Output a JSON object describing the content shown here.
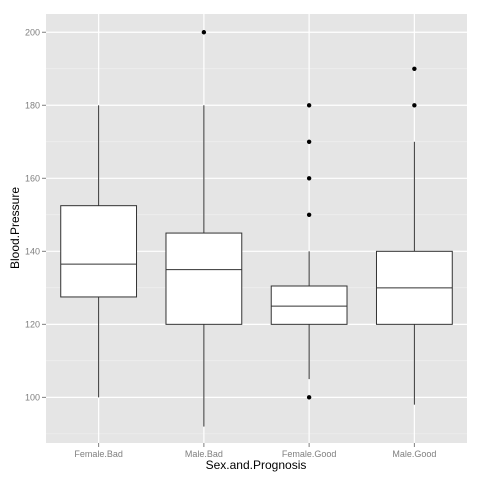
{
  "chart_data": {
    "type": "boxplot",
    "title": "",
    "xlabel": "Sex.and.Prognosis",
    "ylabel": "Blood.Pressure",
    "categories": [
      "Female.Bad",
      "Male.Bad",
      "Female.Good",
      "Male.Good"
    ],
    "y_ticks": [
      100,
      120,
      140,
      160,
      180,
      200
    ],
    "y_minor_ticks": [
      90,
      110,
      130,
      150,
      170,
      190
    ],
    "ylim": [
      87.5,
      205
    ],
    "grid": true,
    "legend": "none",
    "boxes": [
      {
        "category": "Female.Bad",
        "whisker_low": 100,
        "q1": 127.5,
        "median": 136.5,
        "q3": 152.5,
        "whisker_high": 180,
        "outliers": []
      },
      {
        "category": "Male.Bad",
        "whisker_low": 92,
        "q1": 120,
        "median": 135,
        "q3": 145,
        "whisker_high": 180,
        "outliers": [
          200
        ]
      },
      {
        "category": "Female.Good",
        "whisker_low": 105,
        "q1": 120,
        "median": 125,
        "q3": 130.5,
        "whisker_high": 140,
        "outliers": [
          100,
          150,
          160,
          170,
          180
        ]
      },
      {
        "category": "Male.Good",
        "whisker_low": 98,
        "q1": 120,
        "median": 130,
        "q3": 140,
        "whisker_high": 170,
        "outliers": [
          180,
          190
        ]
      }
    ],
    "colors": {
      "panel_background": "#e5e5e5",
      "grid_major": "#ffffff",
      "grid_minor": "#f2f2f2",
      "box_fill": "#ffffff",
      "box_stroke": "#333333",
      "point": "#000000",
      "tick_label": "#7f7f7f"
    }
  }
}
